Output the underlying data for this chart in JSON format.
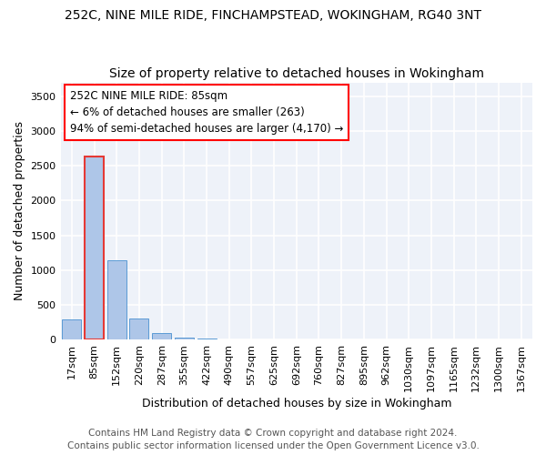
{
  "title1": "252C, NINE MILE RIDE, FINCHAMPSTEAD, WOKINGHAM, RG40 3NT",
  "title2": "Size of property relative to detached houses in Wokingham",
  "xlabel": "Distribution of detached houses by size in Wokingham",
  "ylabel": "Number of detached properties",
  "categories": [
    "17sqm",
    "85sqm",
    "152sqm",
    "220sqm",
    "287sqm",
    "355sqm",
    "422sqm",
    "490sqm",
    "557sqm",
    "625sqm",
    "692sqm",
    "760sqm",
    "827sqm",
    "895sqm",
    "962sqm",
    "1030sqm",
    "1097sqm",
    "1165sqm",
    "1232sqm",
    "1300sqm",
    "1367sqm"
  ],
  "values": [
    290,
    2640,
    1140,
    305,
    90,
    35,
    15,
    0,
    0,
    0,
    0,
    0,
    0,
    0,
    0,
    0,
    0,
    0,
    0,
    0,
    0
  ],
  "bar_color": "#aec6e8",
  "bar_edge_color": "#5b9bd5",
  "highlight_bar_index": 1,
  "highlight_bar_edge_color": "#e53935",
  "annotation_line1": "252C NINE MILE RIDE: 85sqm",
  "annotation_line2": "← 6% of detached houses are smaller (263)",
  "annotation_line3": "94% of semi-detached houses are larger (4,170) →",
  "ylim": [
    0,
    3700
  ],
  "yticks": [
    0,
    500,
    1000,
    1500,
    2000,
    2500,
    3000,
    3500
  ],
  "background_color": "#eef2f9",
  "grid_color": "#ffffff",
  "footer1": "Contains HM Land Registry data © Crown copyright and database right 2024.",
  "footer2": "Contains public sector information licensed under the Open Government Licence v3.0.",
  "title1_fontsize": 10,
  "title2_fontsize": 10,
  "annotation_fontsize": 8.5,
  "footer_fontsize": 7.5,
  "ylabel_fontsize": 9,
  "xlabel_fontsize": 9,
  "tick_fontsize": 8
}
